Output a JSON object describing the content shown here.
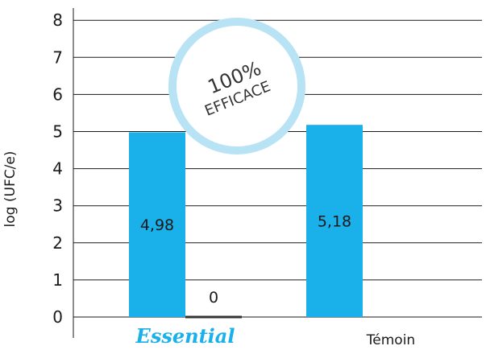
{
  "chart_data": {
    "type": "bar",
    "ylabel": "log (UFC/e)",
    "ylim": [
      0,
      8
    ],
    "yticks": [
      0,
      1,
      2,
      3,
      4,
      5,
      6,
      7,
      8
    ],
    "grid": true,
    "categories": [
      "Essential",
      "Témoin"
    ],
    "series": [
      {
        "values": [
          4.98,
          5.18
        ],
        "labels": [
          "4,98",
          "5,18"
        ],
        "color": "#1ab0ea"
      },
      {
        "values": [
          0,
          null
        ],
        "labels": [
          "0",
          ""
        ],
        "color": "#333333"
      }
    ],
    "brand_color": "#1ab0ea"
  },
  "badge": {
    "line1": "100%",
    "line2": "EFFICACE",
    "ring_color": "#b7e3f5"
  }
}
